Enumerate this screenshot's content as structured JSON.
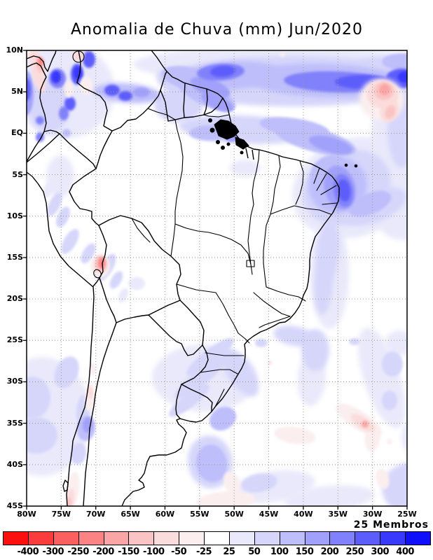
{
  "title": "Anomalia de Chuva (mm) Jun/2020",
  "annotation": "25 Membros",
  "axes": {
    "lat_ticks": [
      "10N",
      "5N",
      "EQ",
      "5S",
      "10S",
      "15S",
      "20S",
      "25S",
      "30S",
      "35S",
      "40S",
      "45S"
    ],
    "lon_ticks": [
      "80W",
      "75W",
      "70W",
      "65W",
      "60W",
      "55W",
      "50W",
      "45W",
      "40W",
      "35W",
      "30W",
      "25W"
    ]
  },
  "colorbar": {
    "tick_labels": [
      "-400",
      "-300",
      "-250",
      "-200",
      "-150",
      "-100",
      "-50",
      "-25",
      "25",
      "50",
      "100",
      "150",
      "200",
      "250",
      "300",
      "400"
    ],
    "colors": [
      "#fb0f0f",
      "#fb3c3c",
      "#fb6060",
      "#fb8383",
      "#fba6a6",
      "#fbc4c4",
      "#fbdcdc",
      "#fbeeee",
      "#ffffff",
      "#e9e9fb",
      "#d6d6fb",
      "#bebefb",
      "#a1a1fb",
      "#8181fb",
      "#5d5dfb",
      "#3939fb",
      "#0f0ffb"
    ]
  },
  "chart_data": {
    "type": "heatmap",
    "subtype": "filled-contour-map",
    "title": "Anomalia de Chuva (mm) Jun/2020",
    "region": "South America",
    "variable": "Rainfall anomaly (mm)",
    "period": "Jun/2020",
    "ensemble_members_label": "25 Membros",
    "lon_range": [
      "80W",
      "25W"
    ],
    "lat_range": [
      "45S",
      "10N"
    ],
    "grid": "dotted, every 5 degrees",
    "legend_position": "bottom colorbar",
    "contour_levels_mm": [
      -400,
      -300,
      -250,
      -200,
      -150,
      -100,
      -50,
      -25,
      25,
      50,
      100,
      150,
      200,
      250,
      300,
      400
    ],
    "palette_hex": [
      "#fb0f0f",
      "#fb3c3c",
      "#fb6060",
      "#fb8383",
      "#fba6a6",
      "#fbc4c4",
      "#fbdcdc",
      "#fbeeee",
      "#ffffff",
      "#e9e9fb",
      "#d6d6fb",
      "#bebefb",
      "#a1a1fb",
      "#8181fb",
      "#5d5dfb",
      "#3939fb",
      "#0f0ffb"
    ],
    "features": [
      {
        "area": "Tropical North Atlantic band",
        "lon": "62W-25W",
        "lat": "4N-9N",
        "anomaly_mm": "+100 to +300"
      },
      {
        "area": "Colombia / W Venezuela spots",
        "lon": "78W-70W",
        "lat": "EQ-8N",
        "anomaly_mm": "+100 to +250"
      },
      {
        "area": "Guianas coast and offshore",
        "lon": "60W-51W",
        "lat": "3N-8N",
        "anomaly_mm": "+50 to +150"
      },
      {
        "area": "Ocean off Amazon mouth",
        "lon": "50W-42W",
        "lat": "2S-EQ",
        "anomaly_mm": "+50 to +150"
      },
      {
        "area": "NE Brazil coast and offshore",
        "lon": "38W-27W",
        "lat": "3S-11S",
        "anomaly_mm": "+150 to +400"
      },
      {
        "area": "Atlantic near 30W",
        "lon": "31W-28W",
        "lat": "3N-7N",
        "anomaly_mm": "-50 to -150"
      },
      {
        "area": "Peru/Bolivia Altiplano spot",
        "lon": "70W",
        "lat": "15S",
        "anomaly_mm": "-50 to -150"
      },
      {
        "area": "Central Chile coast",
        "lon": "72W",
        "lat": "34S-37S",
        "anomaly_mm": "+50 to +100"
      },
      {
        "area": "Chile/Argentina border strip",
        "lon": "70W",
        "lat": "32S-35S",
        "anomaly_mm": "-25 to -50"
      },
      {
        "area": "Southern Chile coast",
        "lon": "74W",
        "lat": "42S-45S",
        "anomaly_mm": "-25 to -100"
      },
      {
        "area": "S Brazil / Uruguay diagonal bands",
        "lon": "56W-50W",
        "lat": "27S-34S",
        "anomaly_mm": "+25 to +100"
      },
      {
        "area": "SW Atlantic streak",
        "lon": "33W-29W",
        "lat": "31S-35S",
        "anomaly_mm": "-25 to -50"
      },
      {
        "area": "Central Brazil and Argentina interior",
        "lon": "65W-42W",
        "lat": "5S-40S",
        "anomaly_mm": "near 0 (within ±25)"
      }
    ]
  }
}
